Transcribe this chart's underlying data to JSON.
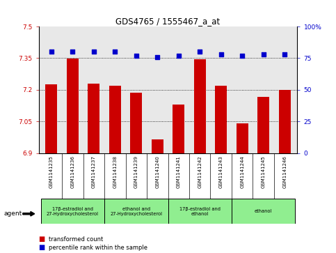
{
  "title": "GDS4765 / 1555467_a_at",
  "samples": [
    "GSM1141235",
    "GSM1141236",
    "GSM1141237",
    "GSM1141238",
    "GSM1141239",
    "GSM1141240",
    "GSM1141241",
    "GSM1141242",
    "GSM1141243",
    "GSM1141244",
    "GSM1141245",
    "GSM1141246"
  ],
  "transformed_count": [
    7.225,
    7.348,
    7.228,
    7.218,
    7.185,
    6.965,
    7.13,
    7.345,
    7.218,
    7.04,
    7.165,
    7.2
  ],
  "percentile_rank": [
    80,
    80,
    80,
    80,
    77,
    76,
    77,
    80,
    78,
    77,
    78,
    78
  ],
  "bar_color": "#cc0000",
  "dot_color": "#0000cc",
  "ylim_left": [
    6.9,
    7.5
  ],
  "ylim_right": [
    0,
    100
  ],
  "yticks_left": [
    6.9,
    7.05,
    7.2,
    7.35,
    7.5
  ],
  "yticks_right": [
    0,
    25,
    50,
    75,
    100
  ],
  "ytick_labels_left": [
    "6.9",
    "7.05",
    "7.2",
    "7.35",
    "7.5"
  ],
  "ytick_labels_right": [
    "0",
    "25",
    "50",
    "75",
    "100%"
  ],
  "hlines": [
    7.05,
    7.2,
    7.35
  ],
  "groups": [
    {
      "label": "17β-estradiol and\n27-Hydroxycholesterol",
      "start": 0,
      "end": 3,
      "color": "#90ee90"
    },
    {
      "label": "ethanol and\n27-Hydroxycholesterol",
      "start": 3,
      "end": 6,
      "color": "#90ee90"
    },
    {
      "label": "17β-estradiol and\nethanol",
      "start": 6,
      "end": 9,
      "color": "#90ee90"
    },
    {
      "label": "ethanol",
      "start": 9,
      "end": 12,
      "color": "#90ee90"
    }
  ],
  "legend_bar_label": "transformed count",
  "legend_dot_label": "percentile rank within the sample",
  "agent_label": "agent",
  "plot_bg": "#e8e8e8",
  "label_bg": "#d0d0d0",
  "bar_width": 0.55
}
